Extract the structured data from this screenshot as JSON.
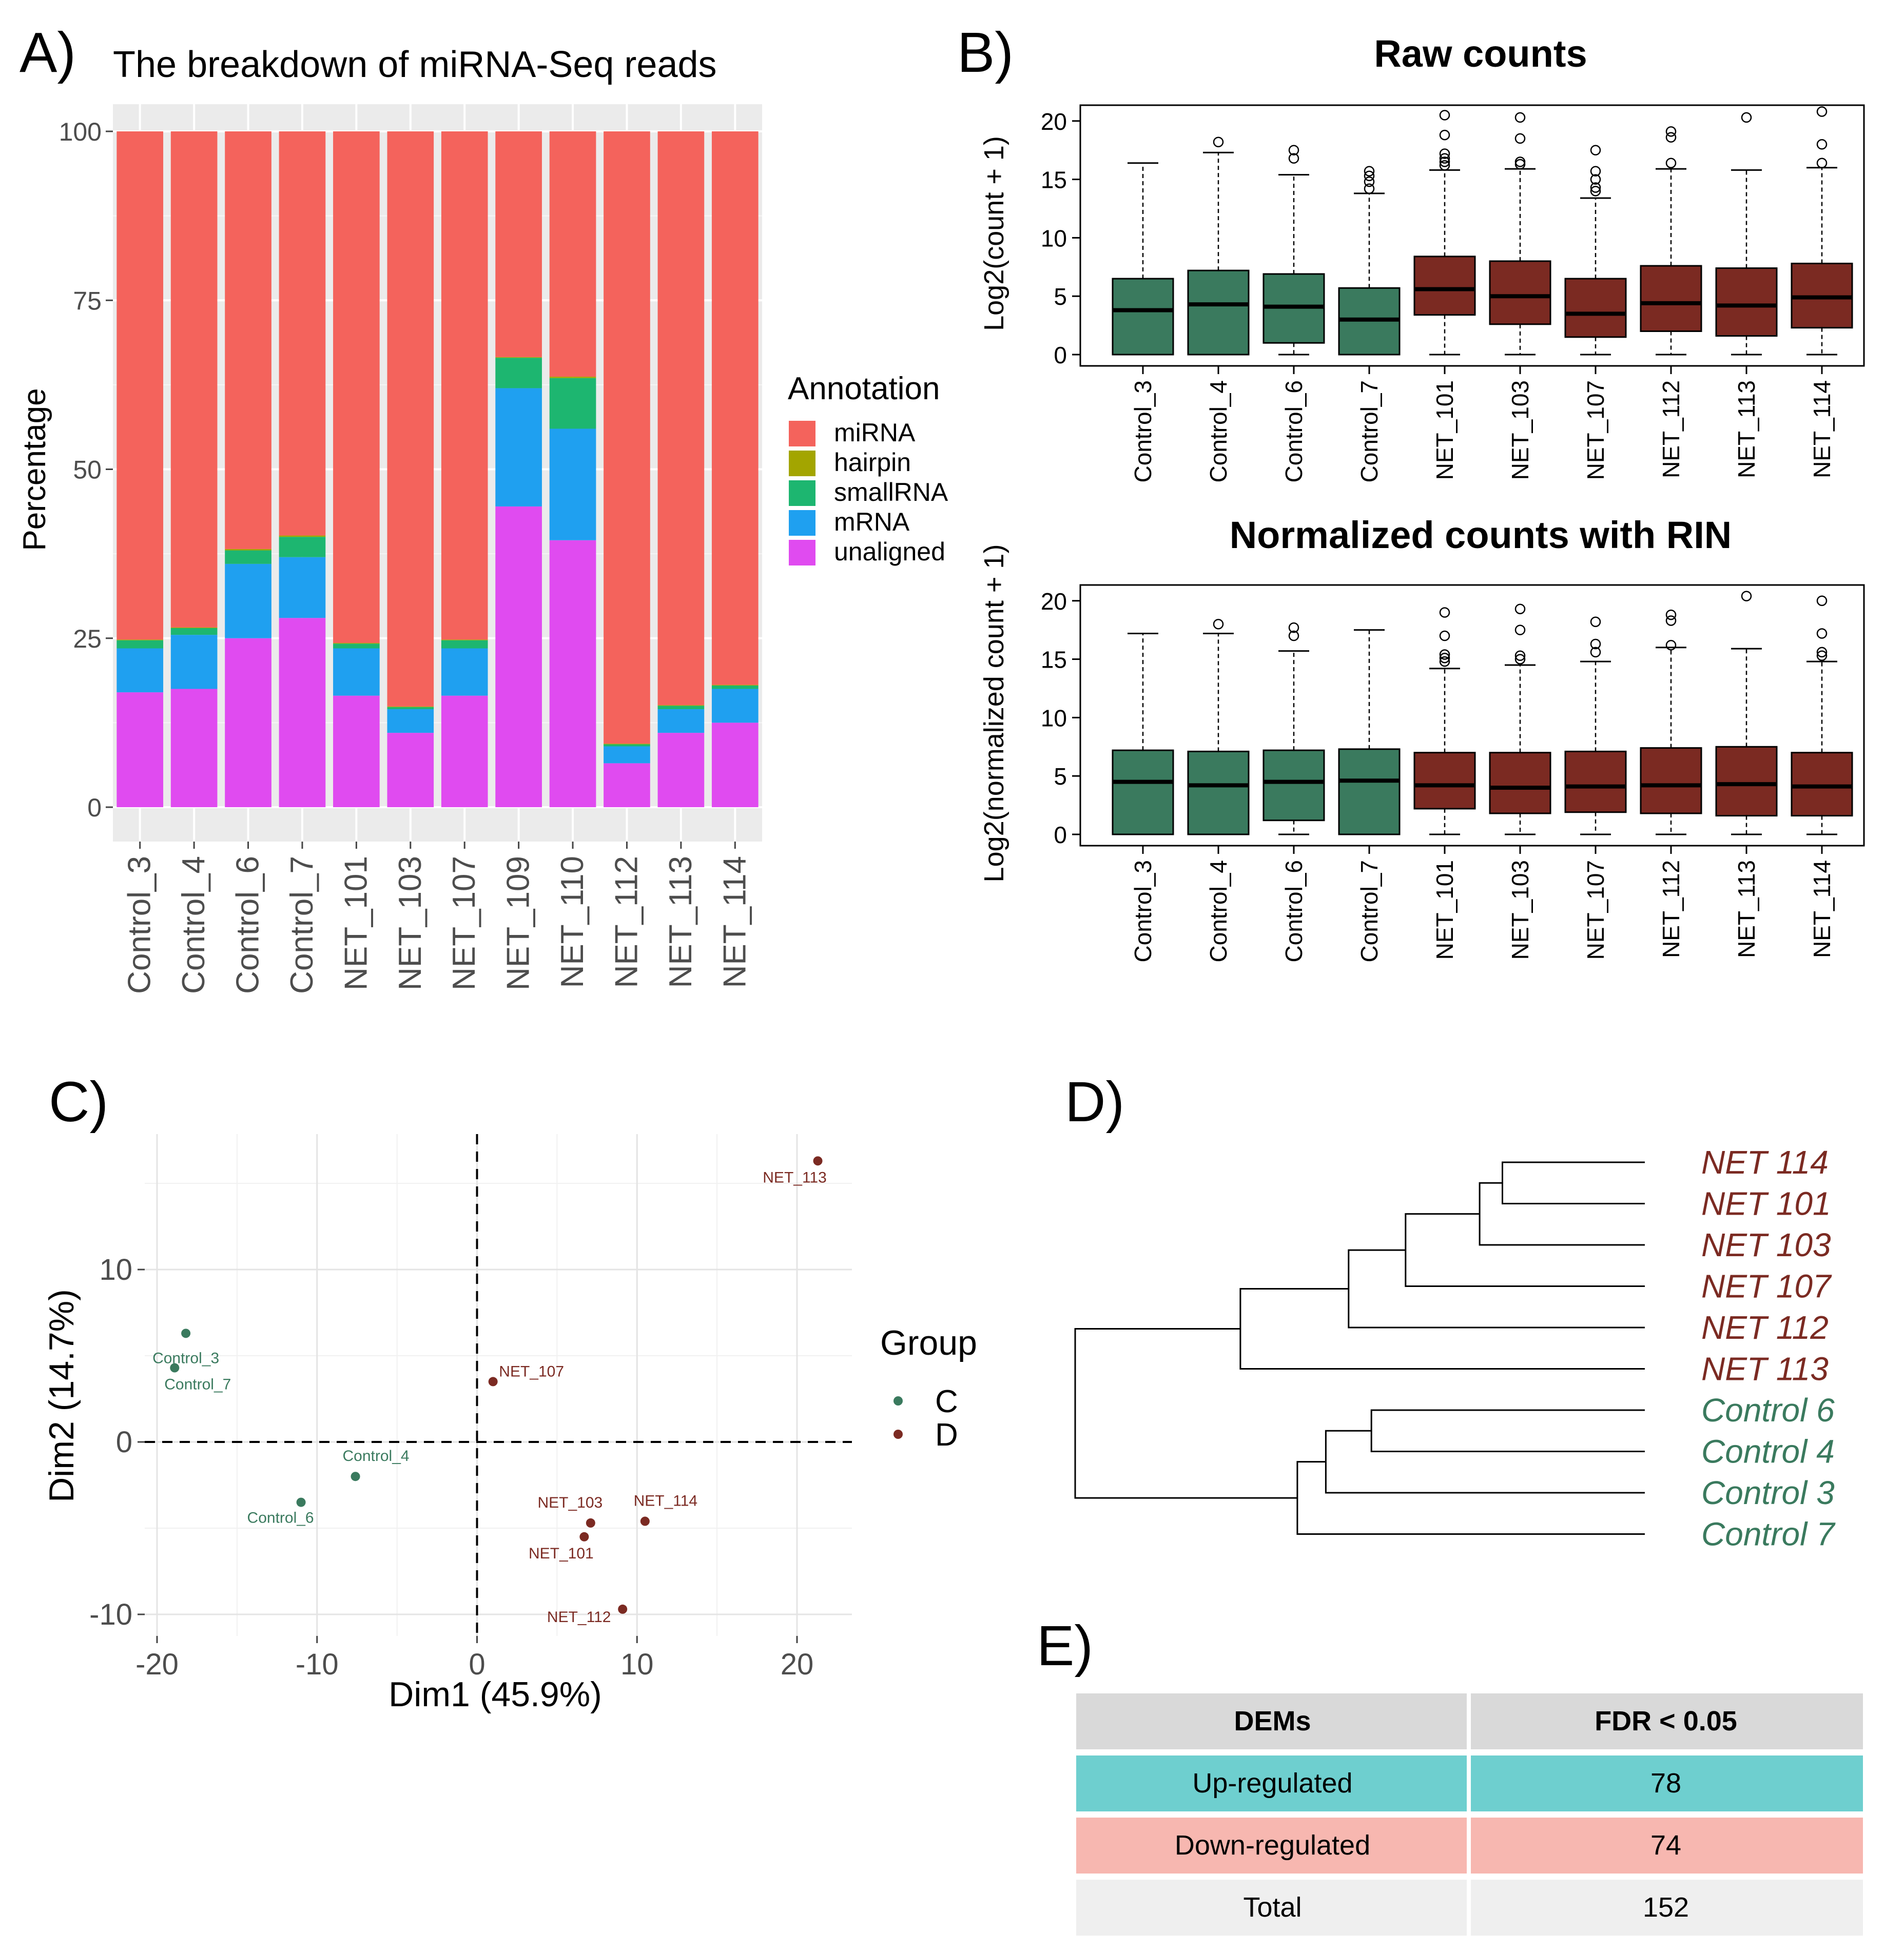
{
  "panel_labels": {
    "a": "A)",
    "b": "B)",
    "c": "C)",
    "d": "D)",
    "e": "E)"
  },
  "colors": {
    "control": "#3a7a5e",
    "net": "#7b2a22",
    "miRNA": "#F4635C",
    "hairpin": "#A3A500",
    "smallRNA": "#1DB670",
    "mRNA": "#1FA0F0",
    "unaligned": "#E04BF0",
    "panel_bg": "#EBEBEB",
    "table_head": "#D9D9D9",
    "table_up": "#6ECFCF",
    "table_down": "#F7B7B0",
    "table_total": "#EFEFEF"
  },
  "chart_data": [
    {
      "id": "A",
      "type": "bar",
      "stacked": true,
      "title": "The breakdown of miRNA-Seq reads",
      "xlabel": "",
      "ylabel": "Percentage",
      "ylim": [
        0,
        100
      ],
      "yticks": [
        0,
        25,
        50,
        75,
        100
      ],
      "legend_title": "Annotation",
      "legend_position": "right",
      "categories": [
        "Control_3",
        "Control_4",
        "Control_6",
        "Control_7",
        "NET_101",
        "NET_103",
        "NET_107",
        "NET_109",
        "NET_110",
        "NET_112",
        "NET_113",
        "NET_114"
      ],
      "series": [
        {
          "name": "unaligned",
          "values": [
            17,
            17.5,
            25,
            28,
            16.5,
            11,
            16.5,
            44.5,
            39.5,
            6.5,
            11,
            12.5
          ]
        },
        {
          "name": "mRNA",
          "values": [
            6.5,
            8,
            11,
            9,
            7,
            3.5,
            7,
            17.5,
            16.5,
            2.5,
            3.5,
            5
          ]
        },
        {
          "name": "smallRNA",
          "values": [
            1.2,
            1,
            2,
            3,
            0.7,
            0.3,
            1.2,
            4.5,
            7.5,
            0.3,
            0.5,
            0.5
          ]
        },
        {
          "name": "hairpin",
          "values": [
            0.1,
            0.1,
            0.2,
            0.2,
            0.1,
            0.1,
            0.1,
            0.1,
            0.2,
            0.1,
            0.1,
            0.1
          ]
        },
        {
          "name": "miRNA",
          "values": [
            75.2,
            73.4,
            61.8,
            59.8,
            75.7,
            85.1,
            75.2,
            33.4,
            36.3,
            90.6,
            84.9,
            81.9
          ]
        }
      ],
      "legend_order": [
        "miRNA",
        "hairpin",
        "smallRNA",
        "mRNA",
        "unaligned"
      ]
    },
    {
      "id": "B1",
      "type": "box",
      "title": "Raw counts",
      "ylabel": "Log2(count + 1)",
      "ylim": [
        0,
        21
      ],
      "yticks": [
        0,
        5,
        10,
        15,
        20
      ],
      "categories": [
        "Control_3",
        "Control_4",
        "Control_6",
        "Control_7",
        "NET_101",
        "NET_103",
        "NET_107",
        "NET_112",
        "NET_113",
        "NET_114"
      ],
      "groups": [
        "C",
        "C",
        "C",
        "C",
        "D",
        "D",
        "D",
        "D",
        "D",
        "D"
      ],
      "boxes": [
        {
          "low": 0,
          "q1": 0,
          "median": 3.8,
          "q3": 6.5,
          "high": 16.4,
          "outliers": []
        },
        {
          "low": 0,
          "q1": 0,
          "median": 4.3,
          "q3": 7.2,
          "high": 17.3,
          "outliers": [
            18.2
          ]
        },
        {
          "low": 0,
          "q1": 1,
          "median": 4.1,
          "q3": 6.9,
          "high": 15.4,
          "outliers": [
            16.8,
            17.5
          ]
        },
        {
          "low": 0,
          "q1": 0,
          "median": 3,
          "q3": 5.7,
          "high": 13.8,
          "outliers": [
            14.2,
            14.8,
            15.3,
            15.7
          ]
        },
        {
          "low": 0,
          "q1": 3.4,
          "median": 5.6,
          "q3": 8.4,
          "high": 15.8,
          "outliers": [
            16.2,
            16.5,
            16.8,
            17.2,
            18.8,
            20.5
          ]
        },
        {
          "low": 0,
          "q1": 2.6,
          "median": 5,
          "q3": 8,
          "high": 15.9,
          "outliers": [
            16.3,
            16.5,
            18.5,
            20.3
          ]
        },
        {
          "low": 0,
          "q1": 1.5,
          "median": 3.5,
          "q3": 6.5,
          "high": 13.4,
          "outliers": [
            14,
            14.3,
            15,
            15.7,
            17.5
          ]
        },
        {
          "low": 0,
          "q1": 2,
          "median": 4.4,
          "q3": 7.6,
          "high": 15.9,
          "outliers": [
            16.4,
            18.6,
            19.1
          ]
        },
        {
          "low": 0,
          "q1": 1.6,
          "median": 4.2,
          "q3": 7.4,
          "high": 15.8,
          "outliers": [
            20.3
          ]
        },
        {
          "low": 0,
          "q1": 2.3,
          "median": 4.9,
          "q3": 7.8,
          "high": 16,
          "outliers": [
            16.4,
            18,
            20.8
          ]
        }
      ]
    },
    {
      "id": "B2",
      "type": "box",
      "title": "Normalized counts with RIN",
      "ylabel": "Log2(normalized count + 1)",
      "ylim": [
        0,
        21
      ],
      "yticks": [
        0,
        5,
        10,
        15,
        20
      ],
      "categories": [
        "Control_3",
        "Control_4",
        "Control_6",
        "Control_7",
        "NET_101",
        "NET_103",
        "NET_107",
        "NET_112",
        "NET_113",
        "NET_114"
      ],
      "groups": [
        "C",
        "C",
        "C",
        "C",
        "D",
        "D",
        "D",
        "D",
        "D",
        "D"
      ],
      "boxes": [
        {
          "low": 0,
          "q1": 0,
          "median": 4.5,
          "q3": 7.2,
          "high": 17.2,
          "outliers": []
        },
        {
          "low": 0,
          "q1": 0,
          "median": 4.2,
          "q3": 7.1,
          "high": 17.2,
          "outliers": [
            18
          ]
        },
        {
          "low": 0,
          "q1": 1.2,
          "median": 4.5,
          "q3": 7.2,
          "high": 15.7,
          "outliers": [
            17,
            17.7
          ]
        },
        {
          "low": 0,
          "q1": 0,
          "median": 4.6,
          "q3": 7.3,
          "high": 17.5,
          "outliers": []
        },
        {
          "low": 0,
          "q1": 2.2,
          "median": 4.2,
          "q3": 7,
          "high": 14.2,
          "outliers": [
            14.8,
            15.1,
            15.4,
            17,
            19
          ]
        },
        {
          "low": 0,
          "q1": 1.8,
          "median": 4,
          "q3": 7,
          "high": 14.5,
          "outliers": [
            15,
            15.3,
            17.5,
            19.3
          ]
        },
        {
          "low": 0,
          "q1": 1.9,
          "median": 4.1,
          "q3": 7.1,
          "high": 14.8,
          "outliers": [
            15.6,
            16.3,
            18.2
          ]
        },
        {
          "low": 0,
          "q1": 1.8,
          "median": 4.2,
          "q3": 7.4,
          "high": 16,
          "outliers": [
            16.2,
            18.3,
            18.8
          ]
        },
        {
          "low": 0,
          "q1": 1.6,
          "median": 4.3,
          "q3": 7.5,
          "high": 15.9,
          "outliers": [
            20.4
          ]
        },
        {
          "low": 0,
          "q1": 1.6,
          "median": 4.1,
          "q3": 7,
          "high": 14.8,
          "outliers": [
            15.3,
            15.6,
            17.2,
            20
          ]
        }
      ]
    },
    {
      "id": "C",
      "type": "scatter",
      "xlabel": "Dim1 (45.9%)",
      "ylabel": "Dim2 (14.7%)",
      "xlim": [
        -21.5,
        23.5
      ],
      "ylim": [
        -11,
        17.5
      ],
      "xticks": [
        -20,
        -10,
        0,
        10,
        20
      ],
      "yticks": [
        -10,
        0,
        10
      ],
      "legend_title": "Group",
      "legend_position": "right",
      "legend_entries": [
        "C",
        "D"
      ],
      "points": [
        {
          "label": "Control_3",
          "x": -18.2,
          "y": 6.3,
          "group": "C"
        },
        {
          "label": "Control_7",
          "x": -18.9,
          "y": 4.3,
          "group": "C"
        },
        {
          "label": "Control_4",
          "x": -7.6,
          "y": -2,
          "group": "C"
        },
        {
          "label": "Control_6",
          "x": -11,
          "y": -3.5,
          "group": "C"
        },
        {
          "label": "NET_107",
          "x": 1,
          "y": 3.5,
          "group": "D"
        },
        {
          "label": "NET_103",
          "x": 7.1,
          "y": -4.7,
          "group": "D"
        },
        {
          "label": "NET_101",
          "x": 6.7,
          "y": -5.5,
          "group": "D"
        },
        {
          "label": "NET_114",
          "x": 10.5,
          "y": -4.6,
          "group": "D"
        },
        {
          "label": "NET_112",
          "x": 9.1,
          "y": -9.7,
          "group": "D"
        },
        {
          "label": "NET_113",
          "x": 21.3,
          "y": 16.3,
          "group": "D"
        }
      ]
    },
    {
      "id": "D",
      "type": "dendrogram",
      "leaves": [
        {
          "label": "NET 114",
          "group": "D"
        },
        {
          "label": "NET 101",
          "group": "D"
        },
        {
          "label": "NET 103",
          "group": "D"
        },
        {
          "label": "NET 107",
          "group": "D"
        },
        {
          "label": "NET 112",
          "group": "D"
        },
        {
          "label": "NET 113",
          "group": "D"
        },
        {
          "label": "Control 6",
          "group": "C"
        },
        {
          "label": "Control 4",
          "group": "C"
        },
        {
          "label": "Control 3",
          "group": "C"
        },
        {
          "label": "Control 7",
          "group": "C"
        }
      ],
      "merges": [
        {
          "a": "L0",
          "b": "L1",
          "height": 0.25
        },
        {
          "a": "M0",
          "b": "L2",
          "height": 0.29
        },
        {
          "a": "M1",
          "b": "L3",
          "height": 0.42
        },
        {
          "a": "M2",
          "b": "L4",
          "height": 0.52
        },
        {
          "a": "M3",
          "b": "L5",
          "height": 0.71
        },
        {
          "a": "L6",
          "b": "L7",
          "height": 0.48
        },
        {
          "a": "M5",
          "b": "L8",
          "height": 0.56
        },
        {
          "a": "M6",
          "b": "L9",
          "height": 0.61
        },
        {
          "a": "M4",
          "b": "M7",
          "height": 1.0
        }
      ]
    }
  ],
  "table": {
    "headers": [
      "DEMs",
      "FDR < 0.05"
    ],
    "rows": [
      {
        "label": "Up-regulated",
        "value": "78",
        "style": "up"
      },
      {
        "label": "Down-regulated",
        "value": "74",
        "style": "down"
      },
      {
        "label": "Total",
        "value": "152",
        "style": "total"
      }
    ]
  }
}
